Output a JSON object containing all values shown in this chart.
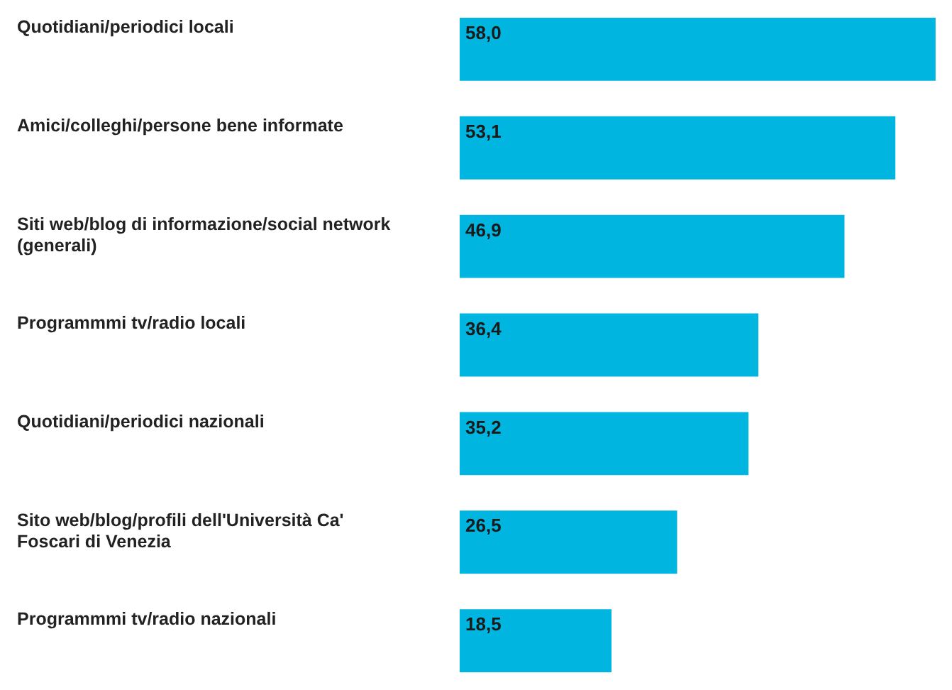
{
  "chart_data": {
    "type": "bar",
    "orientation": "horizontal",
    "categories": [
      "Quotidiani/periodici locali",
      "Amici/colleghi/persone bene informate",
      "Siti web/blog di informazione/social network (generali)",
      "Programmmi tv/radio locali",
      "Quotidiani/periodici nazionali",
      "Sito web/blog/profili dell'Università Ca' Foscari di Venezia",
      "Programmmi tv/radio nazionali"
    ],
    "values": [
      58.0,
      53.1,
      46.9,
      36.4,
      35.2,
      26.5,
      18.5
    ],
    "value_labels": [
      "58,0",
      "53,1",
      "46,9",
      "36,4",
      "35,2",
      "26,5",
      "18,5"
    ],
    "color": "#00b5e0"
  }
}
